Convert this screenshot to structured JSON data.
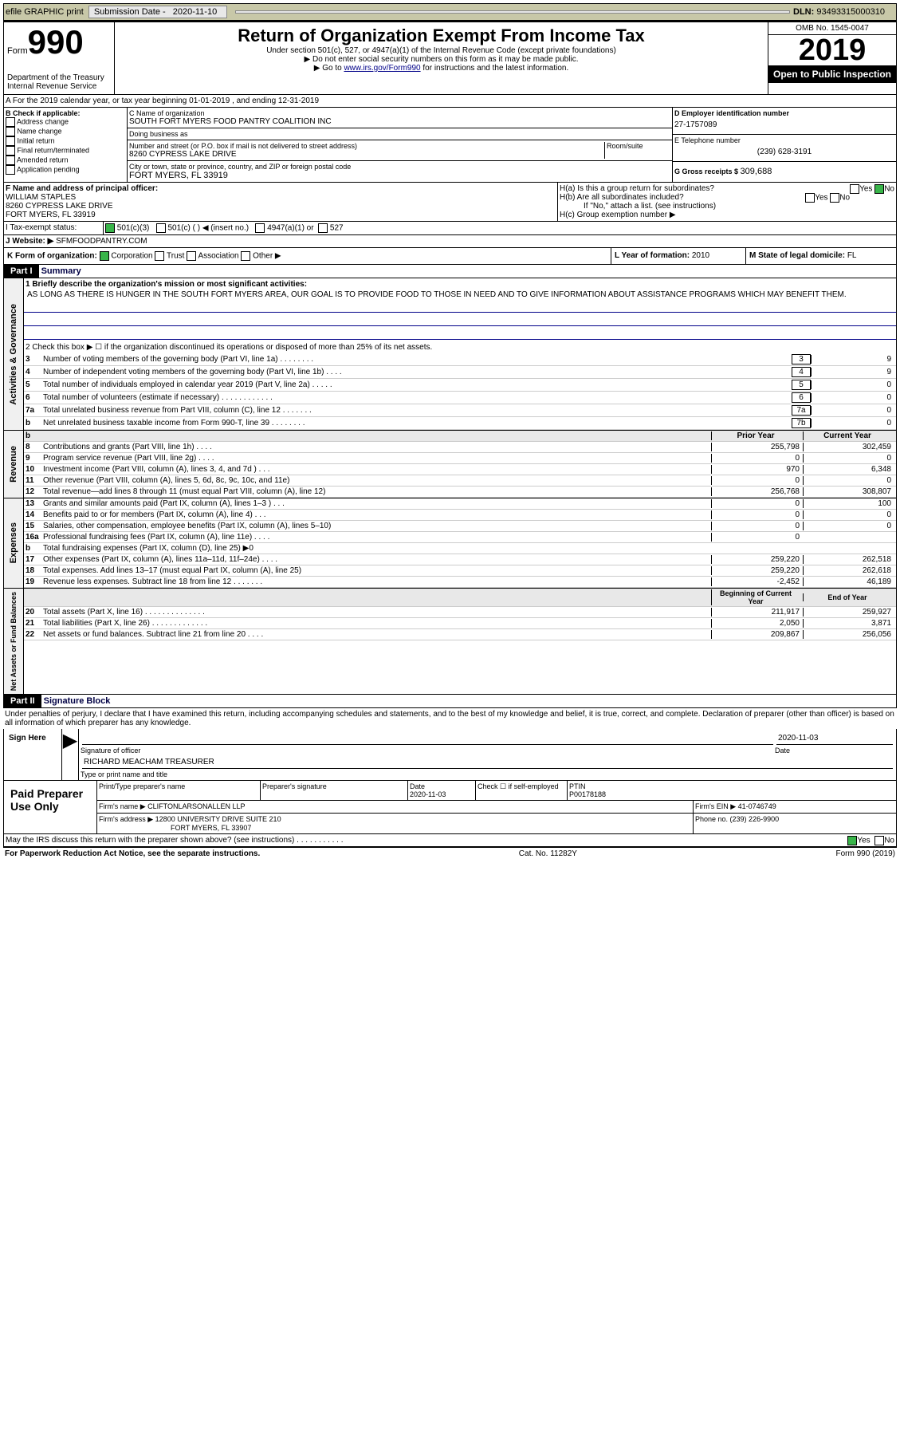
{
  "topbar": {
    "efile": "efile GRAPHIC print",
    "subdate_lbl": "Submission Date - ",
    "subdate": "2020-11-10",
    "dln_lbl": "DLN: ",
    "dln": "93493315000310"
  },
  "header": {
    "form_word": "Form",
    "form_num": "990",
    "title": "Return of Organization Exempt From Income Tax",
    "sub1": "Under section 501(c), 527, or 4947(a)(1) of the Internal Revenue Code (except private foundations)",
    "sub2": "▶ Do not enter social security numbers on this form as it may be made public.",
    "sub3": "▶ Go to ",
    "sub3link": "www.irs.gov/Form990",
    "sub3b": " for instructions and the latest information.",
    "omb": "OMB No. 1545-0047",
    "year": "2019",
    "open": "Open to Public Inspection",
    "dept": "Department of the Treasury",
    "irs": "Internal Revenue Service"
  },
  "periodA": "A For the 2019 calendar year, or tax year beginning 01-01-2019    , and ending 12-31-2019",
  "B": {
    "label": "B Check if applicable:",
    "opts": [
      "Address change",
      "Name change",
      "Initial return",
      "Final return/terminated",
      "Amended return",
      "Application pending"
    ]
  },
  "C": {
    "name_lbl": "C Name of organization",
    "name": "SOUTH FORT MYERS FOOD PANTRY COALITION INC",
    "dba_lbl": "Doing business as",
    "dba": "",
    "addr_lbl": "Number and street (or P.O. box if mail is not delivered to street address)",
    "room_lbl": "Room/suite",
    "addr": "8260 CYPRESS LAKE DRIVE",
    "city_lbl": "City or town, state or province, country, and ZIP or foreign postal code",
    "city": "FORT MYERS, FL  33919"
  },
  "D": {
    "lbl": "D Employer identification number",
    "val": "27-1757089"
  },
  "E": {
    "lbl": "E Telephone number",
    "val": "(239) 628-3191"
  },
  "G": {
    "lbl": "G Gross receipts $ ",
    "val": "309,688"
  },
  "F": {
    "lbl": "F  Name and address of principal officer:",
    "name": "WILLIAM STAPLES",
    "addr": "8260 CYPRESS LAKE DRIVE",
    "city": "FORT MYERS, FL  33919"
  },
  "H": {
    "a": "H(a)  Is this a group return for subordinates?",
    "a_yes": "Yes",
    "a_no": "No",
    "b": "H(b)  Are all subordinates included?",
    "b_yes": "Yes",
    "b_no": "No",
    "b_note": "If \"No,\" attach a list. (see instructions)",
    "c": "H(c)  Group exemption number ▶"
  },
  "I": {
    "lbl": "I  Tax-exempt status:",
    "o1": "501(c)(3)",
    "o2": "501(c) (   ) ◀ (insert no.)",
    "o3": "4947(a)(1) or",
    "o4": "527"
  },
  "J": {
    "lbl": "J  Website: ▶ ",
    "val": "SFMFOODPANTRY.COM"
  },
  "K": {
    "lbl": "K Form of organization:",
    "o1": "Corporation",
    "o2": "Trust",
    "o3": "Association",
    "o4": "Other ▶"
  },
  "L": {
    "lbl": "L Year of formation: ",
    "val": "2010"
  },
  "M": {
    "lbl": "M State of legal domicile: ",
    "val": "FL"
  },
  "part1": {
    "hdr": "Part I",
    "title": "Summary"
  },
  "s1": {
    "lbl": "1  Briefly describe the organization's mission or most significant activities:",
    "text": "AS LONG AS THERE IS HUNGER IN THE SOUTH FORT MYERS AREA, OUR GOAL IS TO PROVIDE FOOD TO THOSE IN NEED AND TO GIVE INFORMATION ABOUT ASSISTANCE PROGRAMS WHICH MAY BENEFIT THEM."
  },
  "gov": {
    "side": "Activities & Governance",
    "l2": "2   Check this box ▶ ☐  if the organization discontinued its operations or disposed of more than 25% of its net assets.",
    "rows": [
      {
        "n": "3",
        "d": "Number of voting members of the governing body (Part VI, line 1a)  .    .    .    .    .    .    .    .",
        "b": "3",
        "v": "9"
      },
      {
        "n": "4",
        "d": "Number of independent voting members of the governing body (Part VI, line 1b)   .    .    .    .",
        "b": "4",
        "v": "9"
      },
      {
        "n": "5",
        "d": "Total number of individuals employed in calendar year 2019 (Part V, line 2a)   .    .    .    .    .",
        "b": "5",
        "v": "0"
      },
      {
        "n": "6",
        "d": "Total number of volunteers (estimate if necessary)    .    .    .    .    .    .    .    .    .    .    .    .",
        "b": "6",
        "v": "0"
      },
      {
        "n": "7a",
        "d": "Total unrelated business revenue from Part VIII, column (C), line 12   .    .    .    .    .    .    .",
        "b": "7a",
        "v": "0"
      },
      {
        "n": "b",
        "d": "Net unrelated business taxable income from Form 990-T, line 39    .    .    .    .    .    .    .    .",
        "b": "7b",
        "v": "0"
      }
    ]
  },
  "yrhdr": {
    "py": "Prior Year",
    "cy": "Current Year"
  },
  "rev": {
    "side": "Revenue",
    "rows": [
      {
        "n": "8",
        "d": "Contributions and grants (Part VIII, line 1h)    .    .    .    .",
        "py": "255,798",
        "cy": "302,459"
      },
      {
        "n": "9",
        "d": "Program service revenue (Part VIII, line 2g)    .    .    .    .",
        "py": "0",
        "cy": "0"
      },
      {
        "n": "10",
        "d": "Investment income (Part VIII, column (A), lines 3, 4, and 7d )    .    .    .",
        "py": "970",
        "cy": "6,348"
      },
      {
        "n": "11",
        "d": "Other revenue (Part VIII, column (A), lines 5, 6d, 8c, 9c, 10c, and 11e)",
        "py": "0",
        "cy": "0"
      },
      {
        "n": "12",
        "d": "Total revenue—add lines 8 through 11 (must equal Part VIII, column (A), line 12)",
        "py": "256,768",
        "cy": "308,807"
      }
    ]
  },
  "exp": {
    "side": "Expenses",
    "rows": [
      {
        "n": "13",
        "d": "Grants and similar amounts paid (Part IX, column (A), lines 1–3 )   .    .    .",
        "py": "0",
        "cy": "100"
      },
      {
        "n": "14",
        "d": "Benefits paid to or for members (Part IX, column (A), line 4)    .    .    .",
        "py": "0",
        "cy": "0"
      },
      {
        "n": "15",
        "d": "Salaries, other compensation, employee benefits (Part IX, column (A), lines 5–10)",
        "py": "0",
        "cy": "0"
      },
      {
        "n": "16a",
        "d": "Professional fundraising fees (Part IX, column (A), line 11e)    .    .    .    .",
        "py": "0",
        "cy": ""
      },
      {
        "n": "b",
        "d": "Total fundraising expenses (Part IX, column (D), line 25) ▶0",
        "py": "",
        "cy": "",
        "shade": true
      },
      {
        "n": "17",
        "d": "Other expenses (Part IX, column (A), lines 11a–11d, 11f–24e)   .    .    .    .",
        "py": "259,220",
        "cy": "262,518"
      },
      {
        "n": "18",
        "d": "Total expenses. Add lines 13–17 (must equal Part IX, column (A), line 25)",
        "py": "259,220",
        "cy": "262,618"
      },
      {
        "n": "19",
        "d": "Revenue less expenses. Subtract line 18 from line 12 .    .    .    .    .    .    .",
        "py": "-2,452",
        "cy": "46,189"
      }
    ]
  },
  "net": {
    "side": "Net Assets or Fund Balances",
    "hdr_py": "Beginning of Current Year",
    "hdr_cy": "End of Year",
    "rows": [
      {
        "n": "20",
        "d": "Total assets (Part X, line 16)  .    .    .    .    .    .    .    .    .    .    .    .    .    .",
        "py": "211,917",
        "cy": "259,927"
      },
      {
        "n": "21",
        "d": "Total liabilities (Part X, line 26)  .    .    .    .    .    .    .    .    .    .    .    .    .",
        "py": "2,050",
        "cy": "3,871"
      },
      {
        "n": "22",
        "d": "Net assets or fund balances. Subtract line 21 from line 20   .    .    .    .",
        "py": "209,867",
        "cy": "256,056"
      }
    ]
  },
  "part2": {
    "hdr": "Part II",
    "title": "Signature Block",
    "pen": "Under penalties of perjury, I declare that I have examined this return, including accompanying schedules and statements, and to the best of my knowledge and belief, it is true, correct, and complete. Declaration of preparer (other than officer) is based on all information of which preparer has any knowledge."
  },
  "sign": {
    "here": "Sign Here",
    "sig_lbl": "Signature of officer",
    "date_lbl": "Date",
    "date": "2020-11-03",
    "name": "RICHARD MEACHAM  TREASURER",
    "name_lbl": "Type or print name and title"
  },
  "prep": {
    "here": "Paid Preparer Use Only",
    "h1": "Print/Type preparer's name",
    "h2": "Preparer's signature",
    "h3": "Date",
    "h3v": "2020-11-03",
    "h4": "Check ☐ if self-employed",
    "h5": "PTIN",
    "h5v": "P00178188",
    "firm_lbl": "Firm's name    ▶",
    "firm": "CLIFTONLARSONALLEN LLP",
    "ein_lbl": "Firm's EIN ▶",
    "ein": "41-0746749",
    "addr_lbl": "Firm's address ▶",
    "addr1": "12800 UNIVERSITY DRIVE SUITE 210",
    "addr2": "FORT MYERS, FL  33907",
    "phone_lbl": "Phone no. ",
    "phone": "(239) 226-9900"
  },
  "discuss": {
    "q": "May the IRS discuss this return with the preparer shown above? (see instructions)   .    .    .    .    .    .    .    .    .    .    .",
    "yes": "Yes",
    "no": "No"
  },
  "foot": {
    "l": "For Paperwork Reduction Act Notice, see the separate instructions.",
    "m": "Cat. No. 11282Y",
    "r": "Form 990 (2019)"
  }
}
